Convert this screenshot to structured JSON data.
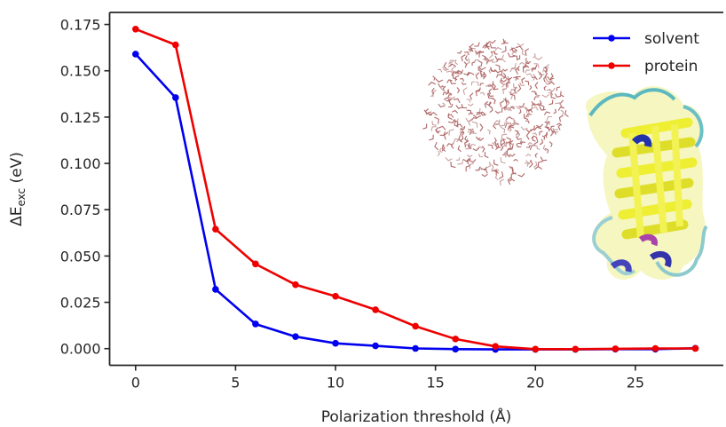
{
  "chart_data": {
    "type": "line",
    "xlabel": "Polarization threshold (Å)",
    "ylabel": {
      "prefix": "ΔE",
      "sub": "exc",
      "suffix": " (eV)"
    },
    "xlim": [
      -1.3,
      29.4
    ],
    "ylim": [
      -0.009,
      0.1815
    ],
    "xticks": [
      0,
      5,
      10,
      15,
      20,
      25
    ],
    "xtick_labels": [
      "0",
      "5",
      "10",
      "15",
      "20",
      "25"
    ],
    "yticks": [
      0.0,
      0.025,
      0.05,
      0.075,
      0.1,
      0.125,
      0.15,
      0.175
    ],
    "ytick_labels": [
      "0.000",
      "0.025",
      "0.050",
      "0.075",
      "0.100",
      "0.125",
      "0.150",
      "0.175"
    ],
    "grid": false,
    "legend_position": "top-right",
    "x": [
      0,
      2,
      4,
      6,
      8,
      10,
      12,
      14,
      16,
      18,
      20,
      22,
      24,
      26,
      28
    ],
    "series": [
      {
        "name": "solvent",
        "color": "#0000ee",
        "values": [
          0.159,
          0.1355,
          0.032,
          0.0133,
          0.0065,
          0.0029,
          0.0015,
          0.0001,
          -0.0003,
          -0.0004,
          -0.0004,
          -0.0004,
          -0.0003,
          -0.0003,
          0.0002
        ]
      },
      {
        "name": "protein",
        "color": "#ee0000",
        "values": [
          0.1725,
          0.164,
          0.0645,
          0.0457,
          0.0345,
          0.0283,
          0.021,
          0.0121,
          0.0052,
          0.0012,
          -0.0003,
          -0.0003,
          -0.0001,
          0.0001,
          0.0001
        ]
      }
    ],
    "insets": [
      "water-droplet-image",
      "protein-beta-barrel-image"
    ]
  }
}
